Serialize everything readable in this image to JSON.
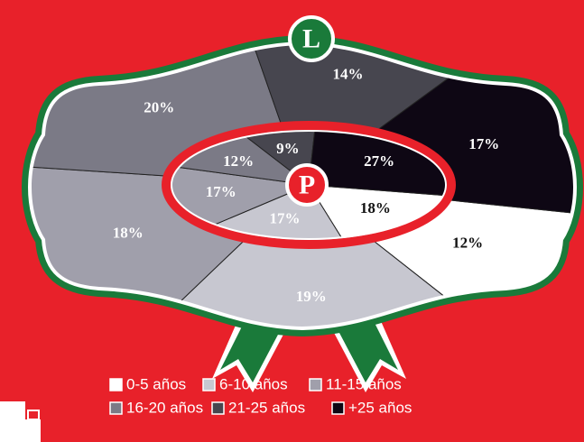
{
  "chart_data": [
    {
      "type": "pie",
      "title": "L",
      "categories": [
        "0-5 años",
        "6-10 años",
        "11-15 años",
        "16-20 años",
        "21-25 años",
        "+25 años"
      ],
      "values": [
        12,
        19,
        18,
        20,
        14,
        17
      ],
      "value_labels": [
        "12%",
        "19%",
        "18%",
        "20%",
        "14%",
        "17%"
      ],
      "colors": [
        "#ffffff",
        "#c7c7d0",
        "#a09fab",
        "#7b7a86",
        "#47464f",
        "#0e0714"
      ]
    },
    {
      "type": "pie",
      "title": "P",
      "categories": [
        "0-5 años",
        "6-10 años",
        "11-15 años",
        "16-20 años",
        "21-25 años",
        "+25 años"
      ],
      "values": [
        18,
        17,
        17,
        12,
        9,
        27
      ],
      "value_labels": [
        "18%",
        "17%",
        "17%",
        "12%",
        "9%",
        "27%"
      ],
      "colors": [
        "#ffffff",
        "#c7c7d0",
        "#a09fab",
        "#7b7a86",
        "#47464f",
        "#0e0714"
      ]
    }
  ]
}
